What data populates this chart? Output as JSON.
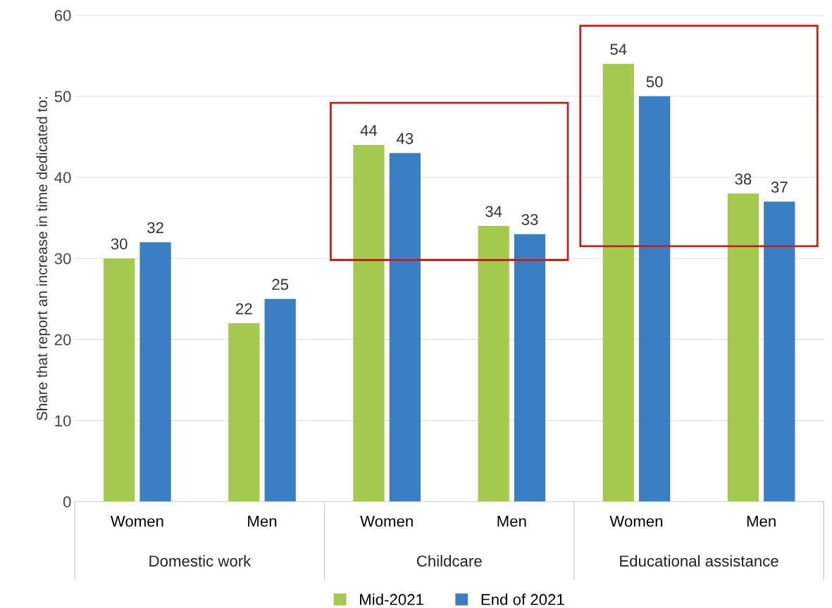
{
  "chart_data": {
    "type": "bar",
    "ylabel": "Share that report an increase in time dedicated to:",
    "categories": [
      "Women",
      "Men",
      "Women",
      "Men",
      "Women",
      "Men"
    ],
    "series": [
      {
        "name": "Mid-2021",
        "color": "#a5c94f",
        "values": [
          30,
          22,
          44,
          34,
          54,
          38
        ]
      },
      {
        "name": "End of 2021",
        "color": "#3a7fc4",
        "values": [
          32,
          25,
          43,
          33,
          50,
          37
        ]
      }
    ],
    "annotations": [
      "Domestic work",
      "Childcare",
      "Educational assistance"
    ],
    "ylim": [
      0,
      60
    ],
    "yticks": [
      0,
      10,
      20,
      30,
      40,
      50,
      60
    ],
    "grid": "y",
    "legend": "bottom",
    "data_labels": true
  }
}
